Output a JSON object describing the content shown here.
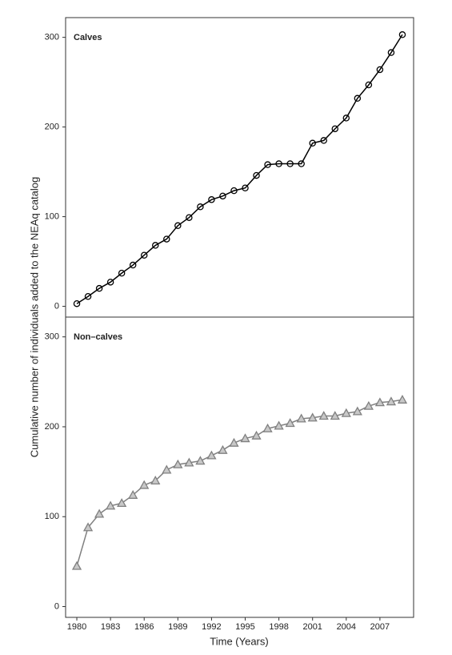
{
  "chart_data": [
    {
      "type": "line",
      "panel_label": "Calves",
      "ylabel": "Cumulative number of individuals added to the NEAq catalog",
      "color": "#000000",
      "marker": "circle",
      "x": [
        1980,
        1981,
        1982,
        1983,
        1984,
        1985,
        1986,
        1987,
        1988,
        1989,
        1990,
        1991,
        1992,
        1993,
        1994,
        1995,
        1996,
        1997,
        1998,
        1999,
        2000,
        2001,
        2002,
        2003,
        2004,
        2005,
        2006,
        2007,
        2008,
        2009
      ],
      "values": [
        3,
        11,
        20,
        27,
        37,
        46,
        57,
        68,
        75,
        90,
        99,
        111,
        119,
        123,
        129,
        132,
        146,
        158,
        159,
        159,
        159,
        182,
        185,
        198,
        210,
        232,
        247,
        264,
        283,
        303
      ],
      "xlim": [
        1979,
        2010
      ],
      "ylim": [
        -12,
        322
      ],
      "yticks": [
        0,
        100,
        200,
        300
      ]
    },
    {
      "type": "line",
      "panel_label": "Non–calves",
      "xlabel": "Time (Years)",
      "color": "#808080",
      "marker": "triangle",
      "x": [
        1980,
        1981,
        1982,
        1983,
        1984,
        1985,
        1986,
        1987,
        1988,
        1989,
        1990,
        1991,
        1992,
        1993,
        1994,
        1995,
        1996,
        1997,
        1998,
        1999,
        2000,
        2001,
        2002,
        2003,
        2004,
        2005,
        2006,
        2007,
        2008,
        2009
      ],
      "values": [
        45,
        88,
        103,
        112,
        115,
        124,
        135,
        140,
        152,
        158,
        160,
        162,
        168,
        174,
        182,
        187,
        190,
        198,
        201,
        204,
        209,
        210,
        212,
        212,
        215,
        217,
        223,
        227,
        228,
        230
      ],
      "xlim": [
        1979,
        2010
      ],
      "ylim": [
        -12,
        322
      ],
      "yticks": [
        0,
        100,
        200,
        300
      ],
      "xticks": [
        1980,
        1983,
        1986,
        1989,
        1992,
        1995,
        1998,
        2001,
        2004,
        2007
      ]
    }
  ]
}
